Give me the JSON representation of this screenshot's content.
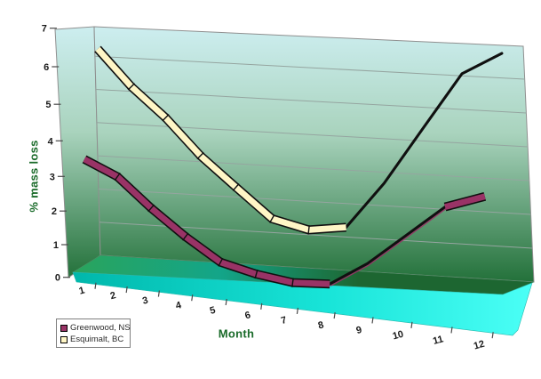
{
  "chart_data": {
    "type": "line",
    "variant": "3d-ribbon",
    "title": "",
    "xlabel": "Month",
    "ylabel": "% mass loss",
    "categories": [
      "1",
      "2",
      "3",
      "4",
      "5",
      "6",
      "7",
      "8",
      "9",
      "10",
      "11",
      "12"
    ],
    "series": [
      {
        "name": "Greenwood, NS",
        "color": "#993366",
        "values": [
          3.5,
          3.0,
          2.1,
          1.3,
          0.6,
          0.3,
          0.1,
          0.1,
          0.7,
          1.5,
          2.3,
          2.6
        ]
      },
      {
        "name": "Esquimalt, BC",
        "color": "#FFF6C6",
        "values": [
          6.5,
          5.4,
          4.5,
          3.4,
          2.5,
          1.6,
          1.3,
          1.4,
          2.7,
          4.3,
          5.9,
          6.5
        ]
      }
    ],
    "ylim": [
      0,
      7
    ],
    "yticks": [
      0,
      1,
      2,
      3,
      4,
      5,
      6,
      7
    ],
    "ytick_labels": [
      "0",
      "1",
      "2",
      "3",
      "4",
      "5",
      "6",
      "7"
    ],
    "grid": true,
    "legend_position": "bottom-left"
  },
  "palette": {
    "axis_title_color": "#1a6b2a",
    "tick_label_color": "#1a1a1a",
    "wall_top": "#cdeef0",
    "wall_mid": "#a9d3bd",
    "wall_bottom": "#23713a",
    "floor_left": "#2aa45c",
    "floor_teal": "#13a589",
    "floor_right": "#1d6631",
    "floor_front_left": "#00b7ab",
    "floor_front_mid": "#18e4d8",
    "floor_front_right": "#4bfff6",
    "gridline": "#95a5a0",
    "outline": "#8f8f8f",
    "ribbon_edge": "#101010"
  }
}
